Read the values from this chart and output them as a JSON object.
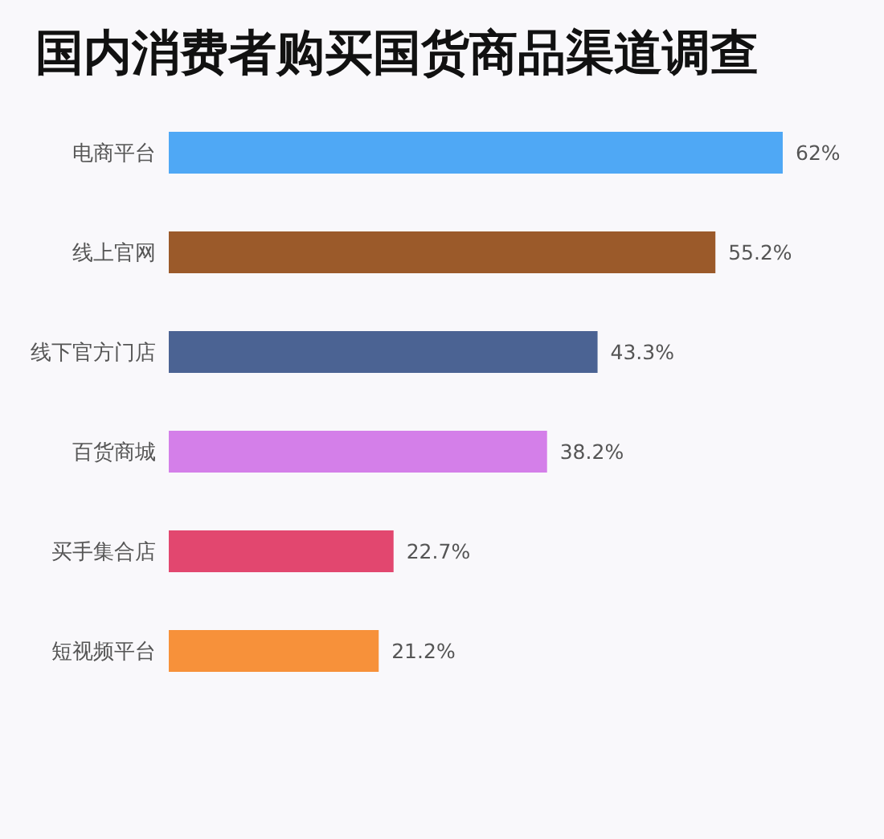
{
  "chart_data": {
    "type": "bar",
    "orientation": "horizontal",
    "title": "国内消费者购买国货商品渠道调查",
    "categories": [
      "电商平台",
      "线上官网",
      "线下官方门店",
      "百货商城",
      "买手集合店",
      "短视频平台"
    ],
    "values": [
      62,
      55.2,
      43.3,
      38.2,
      22.7,
      21.2
    ],
    "colors": [
      "#4fa8f5",
      "#9b5a2a",
      "#4b6393",
      "#d47fe9",
      "#e2476f",
      "#f7913a"
    ],
    "value_labels": [
      "62%",
      "55.2%",
      "43.3%",
      "38.2%",
      "22.7%",
      "21.2%"
    ]
  }
}
